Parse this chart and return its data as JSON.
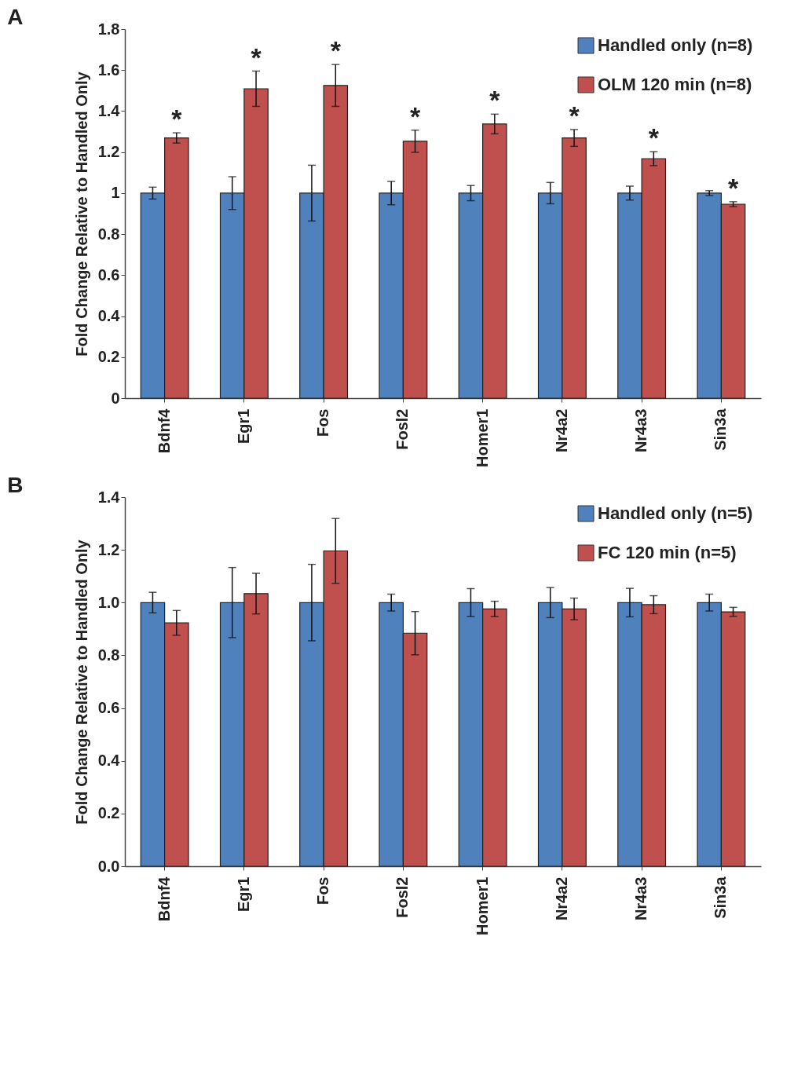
{
  "chart_data": [
    {
      "type": "bar",
      "title": "A",
      "ylabel": "Fold Change Relative to Handled Only",
      "categories": [
        "Bdnf4",
        "Egr1",
        "Fos",
        "Fosl2",
        "Homer1",
        "Nr4a2",
        "Nr4a3",
        "Sin3a"
      ],
      "series": [
        {
          "name": "Handled only (n=8)",
          "color": "#4f81bd",
          "values": [
            1,
            1,
            1,
            1,
            1,
            1,
            1,
            1
          ],
          "errors": [
            0.029,
            0.08,
            0.136,
            0.057,
            0.037,
            0.052,
            0.034,
            0.012
          ]
        },
        {
          "name": "OLM 120 min (n=8)",
          "color": "#c0504d",
          "values": [
            1.269,
            1.509,
            1.525,
            1.253,
            1.337,
            1.269,
            1.168,
            0.946
          ],
          "errors": [
            0.025,
            0.086,
            0.102,
            0.054,
            0.048,
            0.041,
            0.034,
            0.012
          ]
        }
      ],
      "ylim": [
        0,
        1.8
      ],
      "yticks": [
        0,
        0.2,
        0.4,
        0.6,
        0.8,
        1,
        1.2,
        1.4,
        1.6,
        1.8
      ],
      "grid": false,
      "legend": "top right",
      "annotations": [
        {
          "text": "*",
          "x": "Bdnf4",
          "y": 1.269
        },
        {
          "text": "*",
          "x": "Egr1",
          "y": 1.509
        },
        {
          "text": "*",
          "x": "Fos",
          "y": 1.525
        },
        {
          "text": "*",
          "x": "Fosl2",
          "y": 1.253
        },
        {
          "text": "*",
          "x": "Homer1",
          "y": 1.337
        },
        {
          "text": "*",
          "x": "Nr4a2",
          "y": 1.269
        },
        {
          "text": "*",
          "x": "Nr4a3",
          "y": 1.168
        },
        {
          "text": "*",
          "x": "Sin3a",
          "y": 0.946
        }
      ]
    },
    {
      "type": "bar",
      "title": "B",
      "ylabel": "Fold Change Relative to Handled Only",
      "categories": [
        "Bdnf4",
        "Egr1",
        "Fos",
        "Fosl2",
        "Homer1",
        "Nr4a2",
        "Nr4a3",
        "Sin3a"
      ],
      "series": [
        {
          "name": "Handled only (n=5)",
          "color": "#4f81bd",
          "values": [
            1,
            1,
            1,
            1,
            1,
            1,
            1,
            1
          ],
          "errors": [
            0.039,
            0.133,
            0.145,
            0.032,
            0.053,
            0.057,
            0.054,
            0.032
          ]
        },
        {
          "name": "FC 120 min (n=5)",
          "color": "#c0504d",
          "values": [
            0.923,
            1.034,
            1.196,
            0.884,
            0.976,
            0.976,
            0.992,
            0.965
          ],
          "errors": [
            0.047,
            0.077,
            0.123,
            0.082,
            0.029,
            0.041,
            0.034,
            0.017
          ]
        }
      ],
      "ylim": [
        0,
        1.4
      ],
      "yticks": [
        {
          "value": 0,
          "label": "0.0"
        },
        0.2,
        0.4,
        0.6,
        0.8,
        {
          "value": 1,
          "label": "1.0"
        },
        1.2,
        1.4
      ],
      "grid": false,
      "legend": "top right"
    }
  ]
}
